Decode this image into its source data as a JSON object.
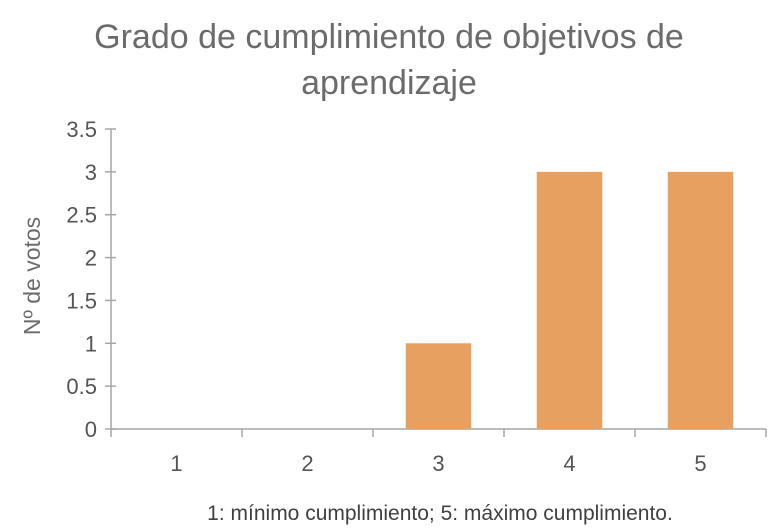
{
  "chart_data": {
    "type": "bar",
    "title_lines": [
      "Grado de cumplimiento de objetivos de",
      "aprendizaje"
    ],
    "categories": [
      "1",
      "2",
      "3",
      "4",
      "5"
    ],
    "values": [
      0,
      0,
      1,
      3,
      3
    ],
    "ylabel": "Nº de votos",
    "xlabel": "1: mínimo cumplimiento; 5: máximo cumplimiento.",
    "ylim": [
      0,
      3.5
    ],
    "yticks": [
      "0",
      "0.5",
      "1",
      "1.5",
      "2",
      "2.5",
      "3",
      "3.5"
    ],
    "grid": false,
    "legend": "none",
    "colors": {
      "bar": "#E8A060",
      "axis": "#A6A6A6"
    }
  }
}
